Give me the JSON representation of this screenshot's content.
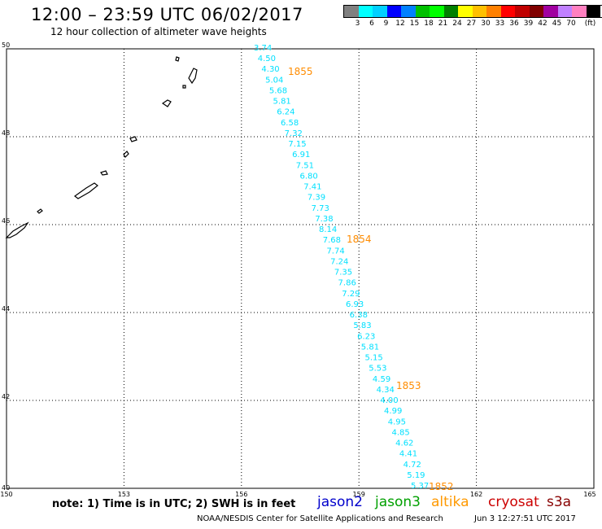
{
  "header": {
    "title": "12:00 – 23:59 UTC 06/02/2017",
    "subtitle": "12 hour collection of altimeter wave heights"
  },
  "colorbar": {
    "colors": [
      "#808080",
      "#00ffff",
      "#00d0ff",
      "#0000ff",
      "#0080ff",
      "#00c000",
      "#00ff00",
      "#008000",
      "#ffff00",
      "#ffc000",
      "#ff8000",
      "#ff0000",
      "#c00000",
      "#800000",
      "#a000a0",
      "#c080ff",
      "#ff80c0",
      "#000000"
    ],
    "labels": [
      "3",
      "6",
      "9",
      "12",
      "15",
      "18",
      "21",
      "24",
      "27",
      "30",
      "33",
      "36",
      "39",
      "42",
      "45",
      "70",
      "(ft)"
    ]
  },
  "map": {
    "lat_labels": [
      "50",
      "48",
      "46",
      "44",
      "42",
      "40"
    ],
    "lon_labels": [
      "150",
      "153",
      "156",
      "159",
      "162",
      "165"
    ],
    "lon_range": [
      150,
      165
    ],
    "lat_range": [
      40,
      50
    ]
  },
  "track": {
    "color": "#00e0ff",
    "values": [
      "3.74",
      "4.50",
      "4.30",
      "5.04",
      "5.68",
      "5.81",
      "6.24",
      "6.58",
      "7.32",
      "7.15",
      "6.91",
      "7.51",
      "6.80",
      "7.41",
      "7.39",
      "7.73",
      "7.38",
      "8.14",
      "7.68",
      "7.74",
      "7.24",
      "7.35",
      "7.86",
      "7.29",
      "6.93",
      "6.38",
      "5.83",
      "6.23",
      "5.81",
      "5.15",
      "5.53",
      "4.59",
      "4.34",
      "4.00",
      "4.99",
      "4.95",
      "4.85",
      "4.62",
      "4.41",
      "4.72",
      "5.19",
      "5.37"
    ],
    "pass_labels": [
      "1855",
      "1854",
      "1853",
      "1852"
    ],
    "pass_color": "#ff8c00"
  },
  "footer": {
    "note": "note: 1) Time is in UTC; 2) SWH is in feet",
    "satellites": [
      {
        "name": "jason2",
        "color": "#0000cc"
      },
      {
        "name": "jason3",
        "color": "#00a000"
      },
      {
        "name": "altika",
        "color": "#ff9900"
      },
      {
        "name": "cryosat",
        "color": "#cc0000"
      },
      {
        "name": "s3a",
        "color": "#880000"
      }
    ],
    "credit": "NOAA/NESDIS Center for Satellite Applications and Research",
    "timestamp": "Jun  3 12:27:51 UTC 2017"
  }
}
